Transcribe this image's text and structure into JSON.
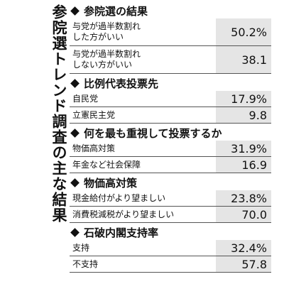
{
  "title": "参院選トレンド調査の主な結果",
  "sections": [
    {
      "header": "参院選の結果",
      "rows": [
        {
          "label": "与党が過半数割れ\nした方がいい",
          "value": "50.2%"
        },
        {
          "label": "与党が過半数割れ\nしない方がいい",
          "value": "38.1"
        }
      ]
    },
    {
      "header": "比例代表投票先",
      "rows": [
        {
          "label": "自民党",
          "value": "17.9%"
        },
        {
          "label": "立憲民主党",
          "value": "9.8"
        }
      ]
    },
    {
      "header": "何を最も重視して投票するか",
      "rows": [
        {
          "label": "物価高対策",
          "value": "31.9%"
        },
        {
          "label": "年金など社会保障",
          "value": "16.9"
        }
      ]
    },
    {
      "header": "物価高対策",
      "rows": [
        {
          "label": "現金給付がより望ましい",
          "value": "23.8%"
        },
        {
          "label": "消費税減税がより望ましい",
          "value": "70.0"
        }
      ]
    },
    {
      "header": "石破内閣支持率",
      "rows": [
        {
          "label": "支持",
          "value": "32.4%"
        },
        {
          "label": "不支持",
          "value": "57.8"
        }
      ]
    }
  ]
}
